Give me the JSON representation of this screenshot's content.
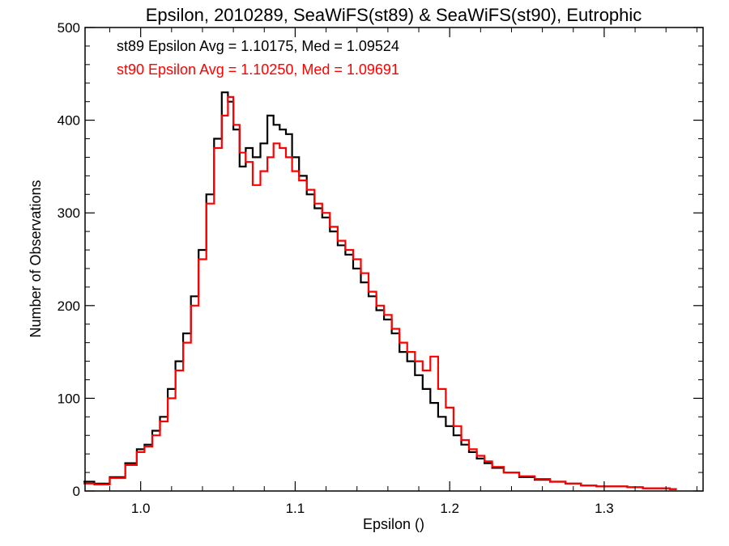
{
  "chart_data": {
    "type": "line",
    "step": true,
    "title": "Epsilon, 2010289, SeaWiFS(st89) & SeaWiFS(st90), Eutrophic",
    "xlabel": "Epsilon ()",
    "ylabel": "Number of Observations",
    "xlim": [
      0.964,
      1.364
    ],
    "ylim": [
      0,
      500
    ],
    "grid": false,
    "xticks": [
      1.0,
      1.1,
      1.2,
      1.3
    ],
    "xtick_labels": [
      "1.0",
      "1.1",
      "1.2",
      "1.3"
    ],
    "yticks": [
      0,
      100,
      200,
      300,
      400,
      500
    ],
    "ytick_labels": [
      "0",
      "100",
      "200",
      "300",
      "400",
      "500"
    ],
    "annotations": [
      {
        "text": "st89 Epsilon Avg = 1.10175, Med = 1.09524",
        "color": "#000000"
      },
      {
        "text": "st90 Epsilon Avg = 1.10250, Med = 1.09691",
        "color": "#ff0000"
      }
    ],
    "series": [
      {
        "color": "#000000",
        "x": [
          0.965,
          0.975,
          0.985,
          0.995,
          1.0,
          1.005,
          1.01,
          1.015,
          1.02,
          1.025,
          1.03,
          1.035,
          1.04,
          1.045,
          1.05,
          1.055,
          1.058,
          1.062,
          1.066,
          1.07,
          1.075,
          1.08,
          1.084,
          1.088,
          1.092,
          1.096,
          1.1,
          1.105,
          1.11,
          1.115,
          1.12,
          1.125,
          1.13,
          1.135,
          1.14,
          1.145,
          1.15,
          1.155,
          1.16,
          1.165,
          1.17,
          1.175,
          1.18,
          1.185,
          1.19,
          1.195,
          1.2,
          1.205,
          1.21,
          1.215,
          1.22,
          1.225,
          1.23,
          1.24,
          1.25,
          1.26,
          1.27,
          1.28,
          1.29,
          1.3,
          1.31,
          1.32,
          1.33,
          1.34,
          1.345
        ],
        "y": [
          10,
          8,
          15,
          30,
          45,
          50,
          65,
          80,
          110,
          140,
          170,
          210,
          260,
          320,
          380,
          430,
          420,
          390,
          350,
          370,
          360,
          375,
          405,
          395,
          390,
          385,
          360,
          340,
          320,
          305,
          295,
          280,
          265,
          255,
          240,
          225,
          210,
          195,
          185,
          170,
          150,
          140,
          125,
          110,
          95,
          80,
          70,
          60,
          50,
          42,
          35,
          30,
          25,
          20,
          15,
          12,
          10,
          8,
          6,
          5,
          5,
          4,
          3,
          3,
          2
        ]
      },
      {
        "color": "#ff0000",
        "x": [
          0.965,
          0.975,
          0.985,
          0.995,
          1.0,
          1.005,
          1.01,
          1.015,
          1.02,
          1.025,
          1.03,
          1.035,
          1.04,
          1.045,
          1.05,
          1.055,
          1.058,
          1.062,
          1.066,
          1.07,
          1.075,
          1.08,
          1.084,
          1.088,
          1.092,
          1.096,
          1.1,
          1.105,
          1.11,
          1.115,
          1.12,
          1.125,
          1.13,
          1.135,
          1.14,
          1.145,
          1.15,
          1.155,
          1.16,
          1.165,
          1.17,
          1.175,
          1.18,
          1.185,
          1.19,
          1.195,
          1.2,
          1.205,
          1.21,
          1.215,
          1.22,
          1.225,
          1.23,
          1.24,
          1.25,
          1.26,
          1.27,
          1.28,
          1.29,
          1.3,
          1.31,
          1.32,
          1.33,
          1.34,
          1.345
        ],
        "y": [
          8,
          7,
          14,
          28,
          42,
          48,
          60,
          75,
          100,
          130,
          160,
          200,
          250,
          310,
          370,
          405,
          425,
          395,
          365,
          355,
          330,
          345,
          360,
          375,
          370,
          360,
          345,
          335,
          325,
          310,
          300,
          285,
          270,
          260,
          250,
          235,
          215,
          200,
          190,
          175,
          160,
          150,
          140,
          130,
          145,
          110,
          90,
          70,
          55,
          45,
          38,
          32,
          26,
          20,
          16,
          13,
          10,
          8,
          6,
          5,
          5,
          4,
          3,
          3,
          2
        ]
      }
    ]
  }
}
